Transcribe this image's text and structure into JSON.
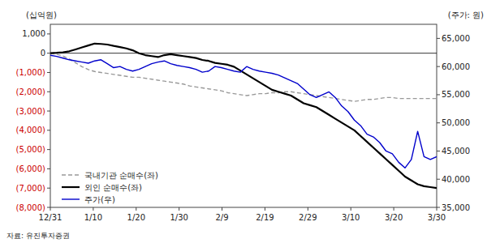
{
  "chart_data": {
    "type": "line",
    "y_label": "(십억원)",
    "y2_label": "(주가: 원)",
    "source": "자료: 유진투자증권",
    "x": [
      0,
      1,
      2,
      3,
      4,
      5,
      6,
      7,
      8,
      9,
      10,
      11,
      12,
      13,
      14,
      15,
      16,
      17,
      18,
      19,
      20,
      21,
      22,
      23,
      24,
      25,
      26,
      27,
      28,
      29,
      30,
      31,
      32,
      33,
      34,
      35,
      36,
      37,
      38,
      39,
      40,
      41,
      42,
      43,
      44,
      45,
      46,
      47,
      48,
      49,
      50,
      51,
      52,
      53,
      54,
      55,
      56,
      57,
      58,
      59,
      60,
      61
    ],
    "xlim": [
      0,
      61
    ],
    "xticks": [
      {
        "value": 0,
        "label": "12/31"
      },
      {
        "value": 6.777777777777778,
        "label": "1/10"
      },
      {
        "value": 13.555555555555555,
        "label": "1/20"
      },
      {
        "value": 20.333333333333332,
        "label": "1/30"
      },
      {
        "value": 27.11111111111111,
        "label": "2/9"
      },
      {
        "value": 33.888888888888886,
        "label": "2/19"
      },
      {
        "value": 40.666666666666664,
        "label": "2/29"
      },
      {
        "value": 47.44444444444444,
        "label": "3/10"
      },
      {
        "value": 54.22222222222222,
        "label": "3/20"
      },
      {
        "value": 61,
        "label": "3/30"
      }
    ],
    "ylim": [
      -8000,
      1500
    ],
    "yticks": [
      {
        "value": 1000,
        "label": "1,000"
      },
      0,
      {
        "value": -1000,
        "label": "(1,000)"
      },
      {
        "value": -2000,
        "label": "(2,000)"
      },
      {
        "value": -3000,
        "label": "(3,000)"
      },
      {
        "value": -4000,
        "label": "(4,000)"
      },
      {
        "value": -5000,
        "label": "(5,000)"
      },
      {
        "value": -6000,
        "label": "(6,000)"
      },
      {
        "value": -7000,
        "label": "(7,000)"
      },
      {
        "value": -8000,
        "label": "(8,000)"
      }
    ],
    "y2lim": [
      35000,
      67500
    ],
    "y2ticks": [
      {
        "value": 35000,
        "label": "35,000"
      },
      {
        "value": 40000,
        "label": "40,000"
      },
      {
        "value": 45000,
        "label": "45,000"
      },
      {
        "value": 50000,
        "label": "50,000"
      },
      {
        "value": 55000,
        "label": "55,000"
      },
      {
        "value": 60000,
        "label": "60,000"
      },
      {
        "value": 65000,
        "label": "65,000"
      }
    ],
    "grid": false,
    "legend": "lower left",
    "series": [
      {
        "name": "국내기관 순매수(좌)",
        "color": "#999999",
        "line_style": "dashed",
        "values": [
          0,
          -50,
          -150,
          -300,
          -500,
          -700,
          -850,
          -950,
          -1000,
          -1050,
          -1100,
          -1150,
          -1200,
          -1250,
          -1250,
          -1300,
          -1350,
          -1400,
          -1450,
          -1500,
          -1550,
          -1600,
          -1700,
          -1750,
          -1800,
          -1850,
          -1900,
          -1950,
          -2050,
          -2100,
          -2150,
          -2200,
          -2150,
          -2100,
          -2100,
          -2050,
          -2050,
          -2000,
          -2000,
          -2050,
          -2100,
          -2150,
          -2200,
          -2250,
          -2300,
          -2350,
          -2400,
          -2450,
          -2500,
          -2450,
          -2400,
          -2400,
          -2350,
          -2300,
          -2300,
          -2350,
          -2350,
          -2350,
          -2350,
          -2350,
          -2350,
          -2350
        ]
      },
      {
        "name": "외인 순매수(좌)",
        "color": "#000000",
        "line_style": "solid",
        "values": [
          0,
          20,
          50,
          100,
          200,
          300,
          400,
          500,
          480,
          450,
          380,
          320,
          250,
          150,
          0,
          -100,
          -150,
          -200,
          -100,
          -50,
          -100,
          -150,
          -200,
          -250,
          -350,
          -400,
          -500,
          -550,
          -600,
          -700,
          -900,
          -1100,
          -1300,
          -1500,
          -1700,
          -1900,
          -2000,
          -2100,
          -2200,
          -2400,
          -2600,
          -2700,
          -2800,
          -3000,
          -3200,
          -3400,
          -3600,
          -3800,
          -4000,
          -4300,
          -4600,
          -4900,
          -5200,
          -5500,
          -5800,
          -6100,
          -6400,
          -6600,
          -6800,
          -6900,
          -6950,
          -7000
        ]
      },
      {
        "name": "주가(우)",
        "color": "#0000cc",
        "line_style": "solid",
        "axis": "y2",
        "values": [
          62000,
          61800,
          61500,
          61200,
          61000,
          60800,
          60600,
          61000,
          61200,
          60500,
          59800,
          60000,
          59500,
          59200,
          59500,
          60000,
          60500,
          60800,
          61000,
          60500,
          60200,
          60000,
          59800,
          59500,
          59000,
          59200,
          60000,
          59800,
          59500,
          59200,
          59000,
          60000,
          59500,
          59200,
          59000,
          58800,
          58500,
          58000,
          57500,
          57000,
          56000,
          55000,
          54500,
          55000,
          55500,
          54500,
          53000,
          52000,
          50500,
          49500,
          48000,
          47500,
          46500,
          45000,
          44500,
          43000,
          42000,
          43500,
          48500,
          44000,
          43500,
          44000
        ]
      }
    ]
  }
}
